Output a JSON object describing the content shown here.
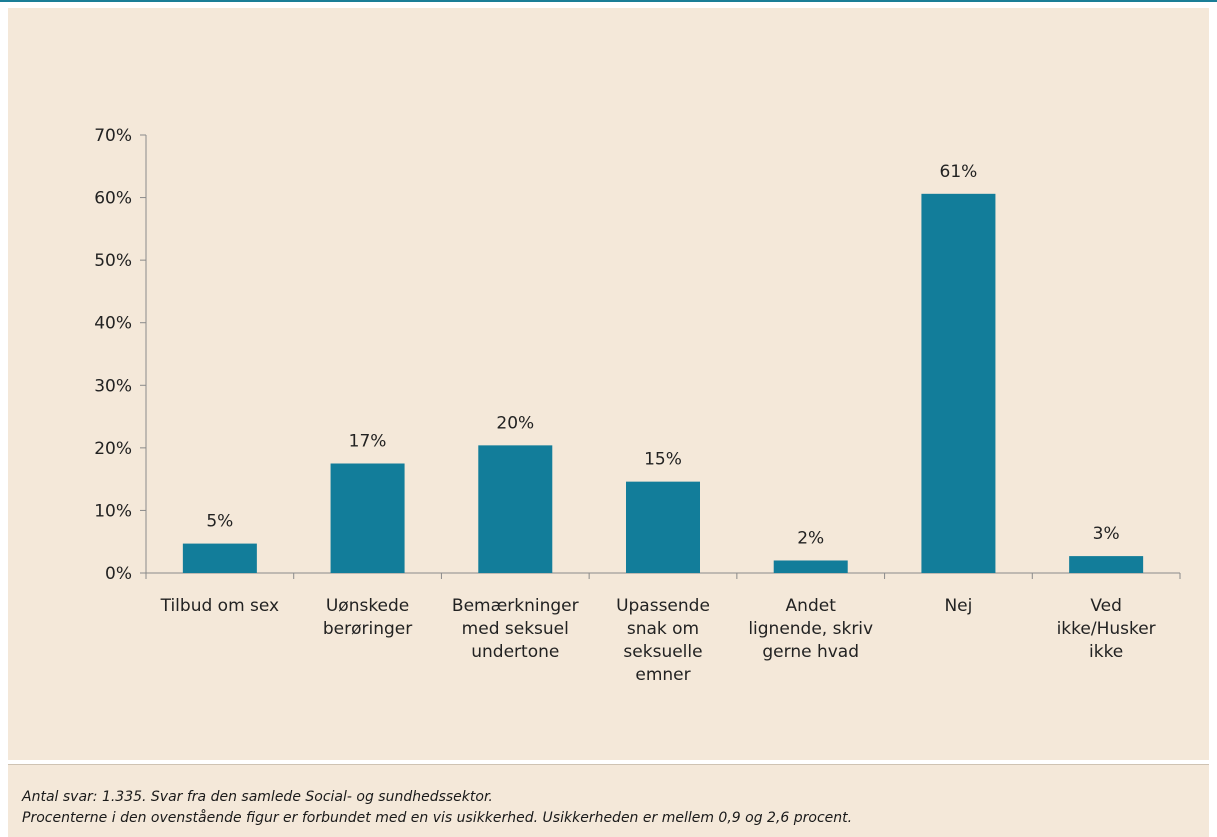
{
  "chart_data": {
    "type": "bar",
    "categories": [
      [
        "Tilbud om sex"
      ],
      [
        "Uønskede",
        "berøringer"
      ],
      [
        "Bemærkninger",
        "med seksuel",
        "undertone"
      ],
      [
        "Upassende",
        "snak om",
        "seksuelle",
        "emner"
      ],
      [
        "Andet",
        "lignende, skriv",
        "gerne hvad"
      ],
      [
        "Nej"
      ],
      [
        "Ved",
        "ikke/Husker",
        "ikke"
      ]
    ],
    "values": [
      4.7,
      17.5,
      20.4,
      14.6,
      2.0,
      60.6,
      2.7
    ],
    "data_labels": [
      "5%",
      "17%",
      "20%",
      "15%",
      "2%",
      "61%",
      "3%"
    ],
    "ylim": [
      0,
      70
    ],
    "yticks": [
      "0%",
      "10%",
      "20%",
      "30%",
      "40%",
      "50%",
      "60%",
      "70%"
    ],
    "ytick_values": [
      0,
      10,
      20,
      30,
      40,
      50,
      60,
      70
    ],
    "bar_color": "#127d9a",
    "grid": false,
    "legend": "none"
  },
  "notes": {
    "line1": "Antal svar: 1.335. Svar fra den samlede Social- og sundhedssektor.",
    "line2": "Procenterne i den ovenstående figur er forbundet med en vis usikkerhed. Usikkerheden er mellem 0,9 og 2,6 procent."
  },
  "colors": {
    "background": "#f4e8d9",
    "accent": "#1a7e97"
  }
}
